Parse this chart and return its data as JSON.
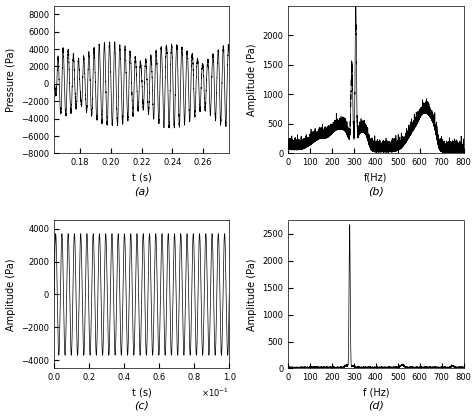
{
  "fig_width": 4.77,
  "fig_height": 4.16,
  "dpi": 100,
  "subplot_a": {
    "t_start": 0.163,
    "t_end": 0.277,
    "ylim": [
      -8000,
      9000
    ],
    "yticks": [
      -8000,
      -6000,
      -4000,
      -2000,
      0,
      2000,
      4000,
      6000,
      8000
    ],
    "xticks": [
      0.18,
      0.2,
      0.22,
      0.24,
      0.26
    ],
    "xlabel": "t (s)",
    "ylabel": "Pressure (Pa)",
    "label": "(a)",
    "freq1": 285,
    "freq2": 310,
    "beat_freq": 25
  },
  "subplot_b": {
    "xlim": [
      0,
      800
    ],
    "ylim": [
      0,
      2500
    ],
    "yticks": [
      0,
      500,
      1000,
      1500,
      2000
    ],
    "xticks": [
      0,
      100,
      200,
      300,
      400,
      500,
      600,
      700,
      800
    ],
    "xlabel": "f(Hz)",
    "ylabel": "Amplitude (Pa)",
    "label": "(b)",
    "peak1_freq": 290,
    "peak1_amp": 1300,
    "peak2_freq": 308,
    "peak2_amp": 2300
  },
  "subplot_c": {
    "t_start": 0.0,
    "t_end": 0.1,
    "ylim": [
      -4500,
      4500
    ],
    "yticks": [
      -4000,
      -2000,
      0,
      2000,
      4000
    ],
    "xtick_vals": [
      0.0,
      0.02,
      0.04,
      0.06,
      0.08,
      0.1
    ],
    "xtick_labels": [
      "0.0",
      "0.2",
      "0.4",
      "0.6",
      "0.8",
      "1.0"
    ],
    "sci_label": "1.0x10$^{-1}$",
    "xlabel": "t (s)",
    "ylabel": "Amplitude (Pa)",
    "label": "(c)",
    "freq": 280,
    "amplitude": 3700
  },
  "subplot_d": {
    "xlim": [
      0,
      800
    ],
    "ylim": [
      0,
      2750
    ],
    "yticks": [
      0,
      500,
      1000,
      1500,
      2000,
      2500
    ],
    "xticks": [
      0,
      100,
      200,
      300,
      400,
      500,
      600,
      700,
      800
    ],
    "xlabel": "f (Hz)",
    "ylabel": "Amplitude (Pa)",
    "label": "(d)",
    "peak_freq": 280,
    "peak_amp": 2650
  },
  "line_color": "#000000",
  "line_width": 0.5,
  "label_fontsize": 7,
  "tick_fontsize": 6,
  "caption_fontsize": 8,
  "axes_gray": "#cccccc"
}
